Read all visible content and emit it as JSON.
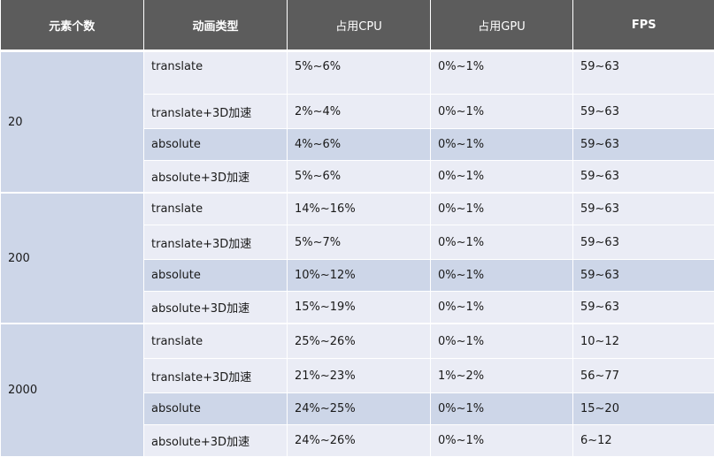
{
  "headers": [
    "元素个数",
    "动画类型",
    "占用CPU",
    "占用GPU",
    "FPS"
  ],
  "groups": [
    {
      "count": "20",
      "rows": [
        {
          "type": "translate",
          "cpu": "5%~6%",
          "gpu": "0%~1%",
          "fps": "59~63"
        },
        {
          "type": "translate+3D加速",
          "cpu": "2%~4%",
          "gpu": "0%~1%",
          "fps": "59~63"
        },
        {
          "type": "absolute",
          "cpu": "4%~6%",
          "gpu": "0%~1%",
          "fps": "59~63"
        },
        {
          "type": "absolute+3D加速",
          "cpu": "5%~6%",
          "gpu": "0%~1%",
          "fps": "59~63"
        }
      ]
    },
    {
      "count": "200",
      "rows": [
        {
          "type": "translate",
          "cpu": "14%~16%",
          "gpu": "0%~1%",
          "fps": "59~63"
        },
        {
          "type": "translate+3D加速",
          "cpu": "5%~7%",
          "gpu": "0%~1%",
          "fps": "59~63"
        },
        {
          "type": "absolute",
          "cpu": "10%~12%",
          "gpu": "0%~1%",
          "fps": "59~63"
        },
        {
          "type": "absolute+3D加速",
          "cpu": "15%~19%",
          "gpu": "0%~1%",
          "fps": "59~63"
        }
      ]
    },
    {
      "count": "2000",
      "rows": [
        {
          "type": "translate",
          "cpu": "25%~26%",
          "gpu": "0%~1%",
          "fps": "10~12"
        },
        {
          "type": "translate+3D加速",
          "cpu": "21%~23%",
          "gpu": "1%~2%",
          "fps": "56~77"
        },
        {
          "type": "absolute",
          "cpu": "24%~25%",
          "gpu": "0%~1%",
          "fps": "15~20"
        },
        {
          "type": "absolute+3D加速",
          "cpu": "24%~26%",
          "gpu": "0%~1%",
          "fps": "6~12"
        }
      ]
    }
  ],
  "colors": {
    "header_bg": "#5c5c5c",
    "header_text": "#ffffff",
    "row_dark": "#cdd6e8",
    "row_light": "#eaecf5",
    "group_cell": "#cdd6e8"
  }
}
